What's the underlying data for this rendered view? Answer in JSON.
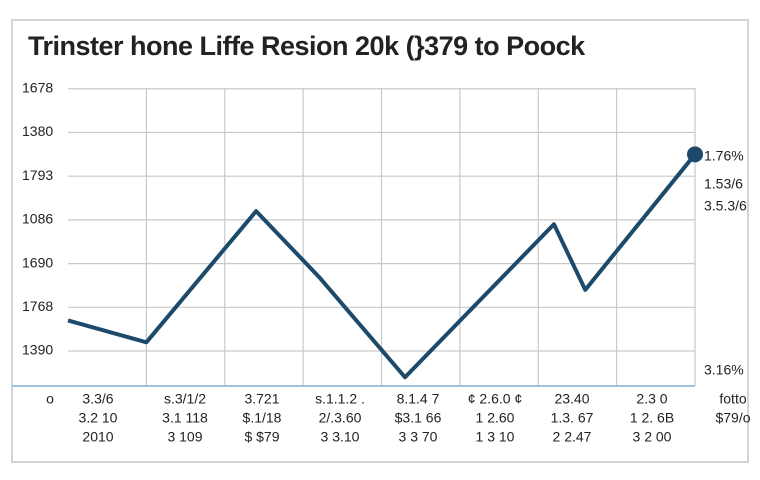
{
  "chart_data": {
    "type": "line",
    "title": "Trinster hone Liffe Resion 20k (}379 to Poock",
    "x": [
      0,
      1,
      2.4,
      3.2,
      4.3,
      6.2,
      6.6,
      8
    ],
    "series": [
      {
        "color": "#1d4a6b",
        "values": [
          1.7,
          1.2,
          4.2,
          2.7,
          0.4,
          3.9,
          2.4,
          5.5
        ]
      }
    ],
    "xlim": [
      0,
      8
    ],
    "xticks": [
      1,
      2,
      3,
      4,
      5,
      6,
      7
    ],
    "ylim": [
      0.2,
      7.2
    ],
    "yticks": [
      {
        "value": 7,
        "label": "1678"
      },
      {
        "value": 6,
        "label": "1380"
      },
      {
        "value": 5,
        "label": "1793"
      },
      {
        "value": 4,
        "label": "1086"
      },
      {
        "value": 3,
        "label": "1690"
      },
      {
        "value": 2,
        "label": "1768"
      },
      {
        "value": 1,
        "label": "1390"
      }
    ],
    "grid": true,
    "x_label_rows": [
      [
        "3.3/6",
        "3.2 10",
        "2010"
      ],
      [
        "s.3/1/2",
        "3.1 118",
        "3 109"
      ],
      [
        "3.721",
        "$.1/18",
        "$ $79"
      ],
      [
        "s.1.1.2 .",
        "2/.3.60",
        "3 3.10"
      ],
      [
        "8.1.4 7",
        "$3.1 66",
        "3 3 70"
      ],
      [
        "¢ 2.6.0 ¢",
        "1 2.60",
        "1 3 10"
      ],
      [
        "23.40",
        "1.3. 67",
        "2 2.47"
      ],
      [
        "2.3 0",
        "1 2. 6B",
        "3 2 00"
      ]
    ],
    "x_label_left": "o",
    "x_label_right": [
      "fotto",
      "$79/o"
    ],
    "annotations": [
      "1.76%",
      "1.53/6",
      "3.5.3/6",
      "3.16%"
    ]
  }
}
